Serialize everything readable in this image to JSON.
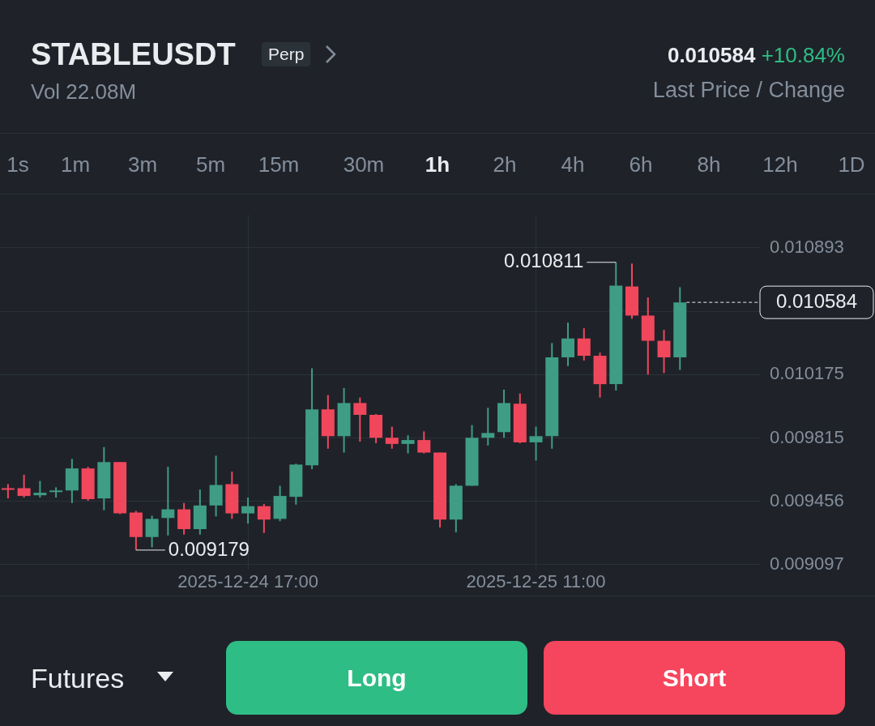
{
  "chart_data": {
    "type": "candlestick",
    "title": "STABLEUSDT",
    "subtitle": "Vol 22.08M",
    "x": [
      "2025-12-24T02:00",
      "2025-12-24T03:00",
      "2025-12-24T04:00",
      "2025-12-24T05:00",
      "2025-12-24T06:00",
      "2025-12-24T07:00",
      "2025-12-24T08:00",
      "2025-12-24T09:00",
      "2025-12-24T10:00",
      "2025-12-24T11:00",
      "2025-12-24T12:00",
      "2025-12-24T13:00",
      "2025-12-24T14:00",
      "2025-12-24T15:00",
      "2025-12-24T16:00",
      "2025-12-24T17:00",
      "2025-12-24T18:00",
      "2025-12-24T19:00",
      "2025-12-24T20:00",
      "2025-12-24T21:00",
      "2025-12-24T22:00",
      "2025-12-24T23:00",
      "2025-12-25T00:00",
      "2025-12-25T01:00",
      "2025-12-25T02:00",
      "2025-12-25T03:00",
      "2025-12-25T04:00",
      "2025-12-25T05:00",
      "2025-12-25T06:00",
      "2025-12-25T07:00",
      "2025-12-25T08:00",
      "2025-12-25T09:00",
      "2025-12-25T10:00",
      "2025-12-25T11:00",
      "2025-12-25T12:00",
      "2025-12-25T13:00",
      "2025-12-25T14:00",
      "2025-12-25T15:00",
      "2025-12-25T16:00",
      "2025-12-25T17:00",
      "2025-12-25T18:00",
      "2025-12-25T19:00",
      "2025-12-25T20:00"
    ],
    "ohlc": [
      [
        0.00953,
        0.009553,
        0.009472,
        0.009522
      ],
      [
        0.00953,
        0.009606,
        0.009477,
        0.009486
      ],
      [
        0.00949,
        0.009571,
        0.009477,
        0.009504
      ],
      [
        0.009508,
        0.009535,
        0.009477,
        0.009517
      ],
      [
        0.009517,
        0.009696,
        0.009446,
        0.009642
      ],
      [
        0.009642,
        0.009651,
        0.009459,
        0.009468
      ],
      [
        0.009472,
        0.009763,
        0.009405,
        0.009678
      ],
      [
        0.009678,
        0.009678,
        0.009383,
        0.009387
      ],
      [
        0.009392,
        0.009401,
        0.009179,
        0.009253
      ],
      [
        0.009253,
        0.009374,
        0.009195,
        0.009356
      ],
      [
        0.009361,
        0.009651,
        0.009262,
        0.00941
      ],
      [
        0.00941,
        0.009446,
        0.009267,
        0.009298
      ],
      [
        0.009298,
        0.009522,
        0.009267,
        0.009432
      ],
      [
        0.009432,
        0.009714,
        0.00937,
        0.009548
      ],
      [
        0.009553,
        0.009624,
        0.009356,
        0.009387
      ],
      [
        0.009387,
        0.009477,
        0.009329,
        0.009428
      ],
      [
        0.009428,
        0.009441,
        0.009276,
        0.009352
      ],
      [
        0.009356,
        0.009544,
        0.009343,
        0.009486
      ],
      [
        0.009481,
        0.009669,
        0.009437,
        0.009664
      ],
      [
        0.00966,
        0.01021,
        0.009638,
        0.009977
      ],
      [
        0.009977,
        0.010058,
        0.009754,
        0.009825
      ],
      [
        0.009825,
        0.010098,
        0.009732,
        0.010013
      ],
      [
        0.010013,
        0.010044,
        0.009794,
        0.009946
      ],
      [
        0.009946,
        0.00995,
        0.009785,
        0.009816
      ],
      [
        0.009816,
        0.009879,
        0.009754,
        0.009781
      ],
      [
        0.009781,
        0.00983,
        0.009727,
        0.009803
      ],
      [
        0.009803,
        0.009852,
        0.009727,
        0.009732
      ],
      [
        0.009732,
        0.009732,
        0.009307,
        0.009352
      ],
      [
        0.009352,
        0.009553,
        0.00928,
        0.009544
      ],
      [
        0.009544,
        0.009888,
        0.009544,
        0.009816
      ],
      [
        0.009816,
        0.009986,
        0.009772,
        0.009843
      ],
      [
        0.009848,
        0.010089,
        0.009816,
        0.010013
      ],
      [
        0.010009,
        0.010067,
        0.009785,
        0.00979
      ],
      [
        0.00979,
        0.009879,
        0.009687,
        0.009825
      ],
      [
        0.009825,
        0.010353,
        0.009754,
        0.010272
      ],
      [
        0.010272,
        0.010469,
        0.010223,
        0.010379
      ],
      [
        0.010379,
        0.010437,
        0.010254,
        0.010281
      ],
      [
        0.010281,
        0.010299,
        0.010044,
        0.01012
      ],
      [
        0.01012,
        0.010811,
        0.010084,
        0.010679
      ],
      [
        0.010674,
        0.010804,
        0.010491,
        0.010509
      ],
      [
        0.010509,
        0.010612,
        0.010174,
        0.010366
      ],
      [
        0.010366,
        0.010428,
        0.010183,
        0.010272
      ],
      [
        0.010272,
        0.01067,
        0.010201,
        0.010584
      ]
    ],
    "colors": [
      "#f0475c",
      "#f0475c",
      "#3f9d83",
      "#3f9d83",
      "#3f9d83",
      "#f0475c",
      "#3f9d83",
      "#f0475c",
      "#f0475c",
      "#3f9d83",
      "#3f9d83",
      "#f0475c",
      "#3f9d83",
      "#3f9d83",
      "#f0475c",
      "#3f9d83",
      "#f0475c",
      "#3f9d83",
      "#3f9d83",
      "#3f9d83",
      "#f0475c",
      "#3f9d83",
      "#f0475c",
      "#f0475c",
      "#f0475c",
      "#3f9d83",
      "#f0475c",
      "#f0475c",
      "#3f9d83",
      "#3f9d83",
      "#3f9d83",
      "#3f9d83",
      "#f0475c",
      "#3f9d83",
      "#3f9d83",
      "#3f9d83",
      "#f0475c",
      "#f0475c",
      "#3f9d83",
      "#f0475c",
      "#f0475c",
      "#f0475c",
      "#3f9d83"
    ],
    "xlim": [
      "2025-12-24T01:30",
      "2025-12-26T01:00"
    ],
    "xticks": [
      {
        "value": "2025-12-24T17:00",
        "label": "2025-12-24 17:00"
      },
      {
        "value": "2025-12-25T11:00",
        "label": "2025-12-25 11:00"
      }
    ],
    "ylim": [
      0.00907,
      0.01108
    ],
    "yticks": [
      {
        "value": 0.009097,
        "label": "0.009097"
      },
      {
        "value": 0.009456,
        "label": "0.009456"
      },
      {
        "value": 0.009815,
        "label": "0.009815"
      },
      {
        "value": 0.010175,
        "label": "0.010175"
      },
      {
        "value": 0.010534,
        "label": null
      },
      {
        "value": 0.010893,
        "label": "0.010893"
      }
    ],
    "grid": true,
    "legend": false,
    "ref_lines": [
      {
        "axis": "y",
        "value": 0.010584,
        "label": "0.010584",
        "line_style": "dashed",
        "color": "#eaecef"
      }
    ],
    "annotations": [
      "Perp",
      "0.010584",
      "+10.84%",
      "Last Price / Change",
      "1s",
      "1m",
      "3m",
      "5m",
      "15m",
      "30m",
      "1h",
      "2h",
      "4h",
      "6h",
      "8h",
      "12h",
      "1D",
      "Futures",
      "Long",
      "Short",
      {
        "text": "0.010811",
        "x": "2025-12-25T16:00",
        "y": 0.010811
      },
      {
        "text": "0.009179",
        "x": "2025-12-24T10:00",
        "y": 0.009179
      }
    ]
  }
}
